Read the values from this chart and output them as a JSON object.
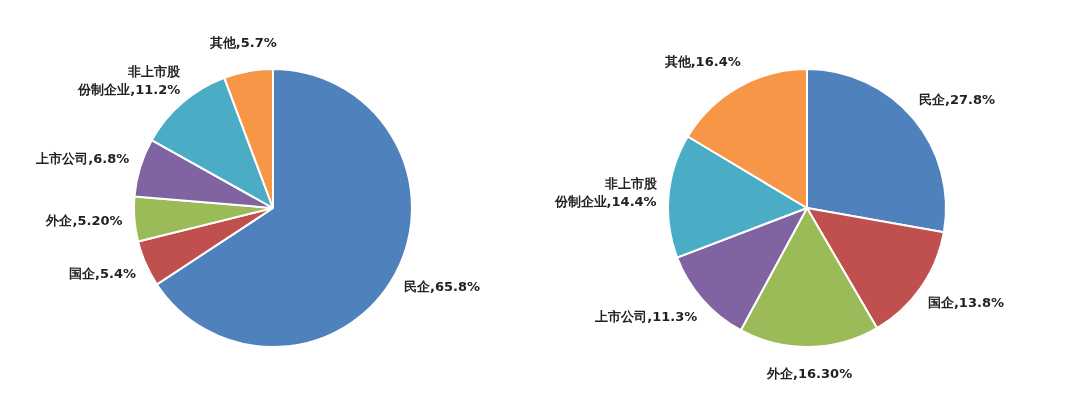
{
  "chart_data": [
    {
      "type": "pie",
      "categories": [
        "民企",
        "国企",
        "外企",
        "上市公司",
        "非上市股份制企业",
        "其他"
      ],
      "values": [
        65.8,
        5.4,
        5.2,
        6.8,
        11.2,
        5.7
      ],
      "value_labels": [
        "65.8%",
        "5.4%",
        "5.20%",
        "6.8%",
        "11.2%",
        "5.7%"
      ],
      "colors": [
        "#4f81bd",
        "#c0504d",
        "#9bbb59",
        "#8064a2",
        "#4bacc6",
        "#f79646"
      ],
      "legend": false
    },
    {
      "type": "pie",
      "categories": [
        "民企",
        "国企",
        "外企",
        "上市公司",
        "非上市股份制企业",
        "其他"
      ],
      "values": [
        27.8,
        13.8,
        16.3,
        11.3,
        14.4,
        16.4
      ],
      "value_labels": [
        "27.8%",
        "13.8%",
        "16.30%",
        "11.3%",
        "14.4%",
        "16.4%"
      ],
      "colors": [
        "#4f81bd",
        "#c0504d",
        "#9bbb59",
        "#8064a2",
        "#4bacc6",
        "#f79646"
      ],
      "legend": false
    }
  ]
}
